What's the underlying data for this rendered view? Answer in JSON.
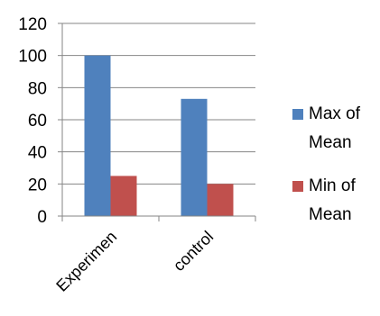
{
  "chart_data": {
    "type": "bar",
    "categories": [
      "Experimen",
      "control"
    ],
    "series": [
      {
        "name": "Max of Mean",
        "values": [
          100,
          73
        ],
        "color": "#4F81BD"
      },
      {
        "name": "Min of Mean",
        "values": [
          25,
          20
        ],
        "color": "#C0504D"
      }
    ],
    "yticks": [
      0,
      20,
      40,
      60,
      80,
      100,
      120
    ],
    "ylim": [
      0,
      120
    ],
    "grid": true,
    "legend": "right",
    "legend_lines": [
      [
        "Max of",
        "Mean"
      ],
      [
        "Min of",
        "Mean"
      ]
    ]
  }
}
